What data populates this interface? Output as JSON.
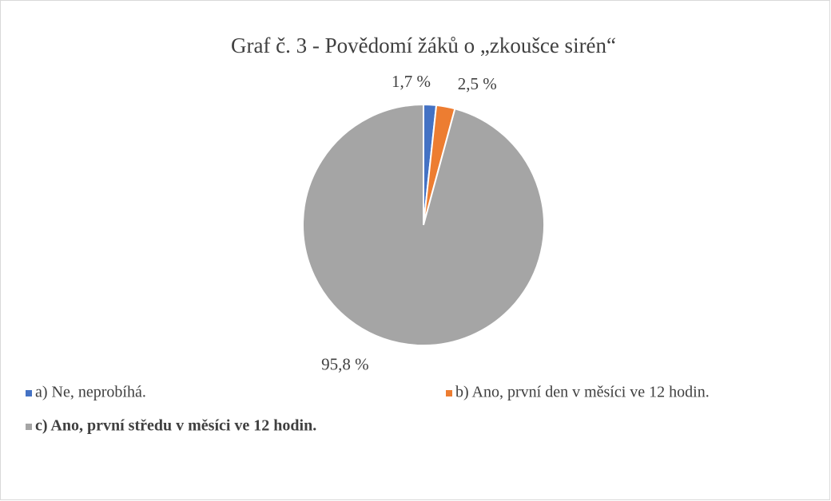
{
  "chart_data": {
    "type": "pie",
    "title": "Graf č. 3 - Povědomí žáků o „zkoušce sirén“",
    "categories": [
      "a) Ne, neprobíhá.",
      "b) Ano, první den v měsíci ve 12 hodin.",
      "c) Ano, první středu v měsíci ve 12 hodin."
    ],
    "values": [
      1.7,
      2.5,
      95.8
    ],
    "value_labels": [
      "1,7 %",
      "2,5 %",
      "95,8 %"
    ],
    "colors": [
      "#4472c4",
      "#ed7d31",
      "#a5a5a5"
    ],
    "legend": "bottom"
  }
}
